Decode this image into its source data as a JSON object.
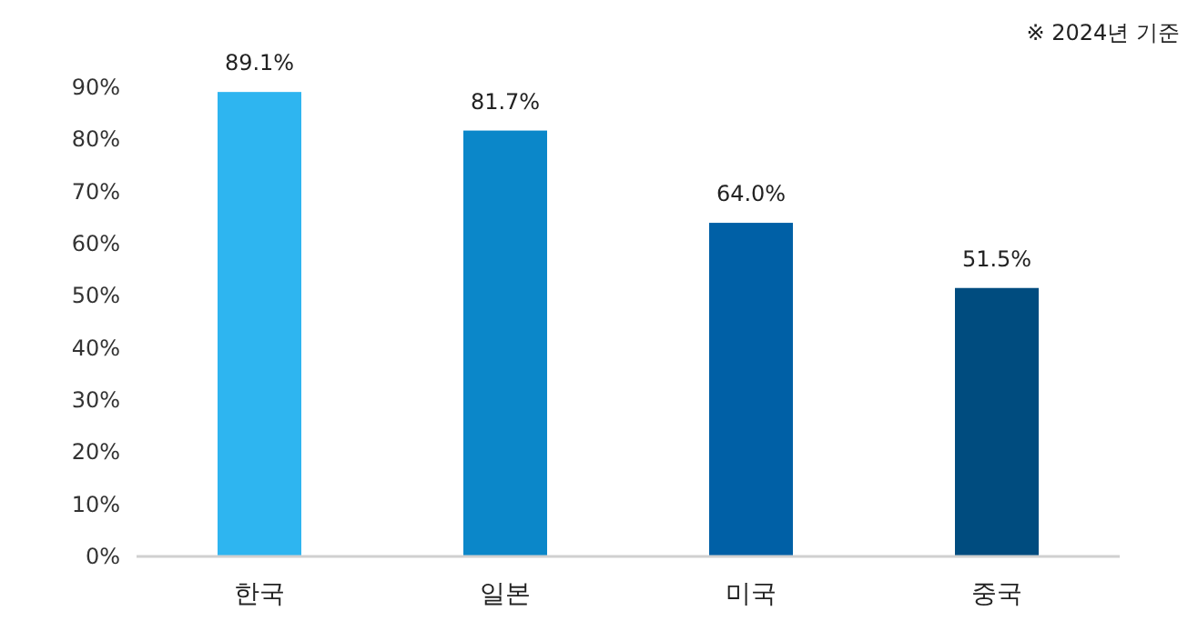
{
  "chart_data": {
    "type": "bar",
    "categories": [
      "한국",
      "일본",
      "미국",
      "중국"
    ],
    "values": [
      89.1,
      81.7,
      64.0,
      51.5
    ],
    "colors": [
      "#2eb5f0",
      "#0b87c9",
      "#0060a6",
      "#004c7f"
    ],
    "value_labels": [
      "89.1%",
      "81.7%",
      "64.0%",
      "51.5%"
    ],
    "ylim": [
      0,
      90
    ],
    "yticks": [
      {
        "value": 0,
        "label": "0%"
      },
      {
        "value": 10,
        "label": "10%"
      },
      {
        "value": 20,
        "label": "20%"
      },
      {
        "value": 30,
        "label": "30%"
      },
      {
        "value": 40,
        "label": "40%"
      },
      {
        "value": 50,
        "label": "50%"
      },
      {
        "value": 60,
        "label": "60%"
      },
      {
        "value": 70,
        "label": "70%"
      },
      {
        "value": 80,
        "label": "80%"
      },
      {
        "value": 90,
        "label": "90%"
      }
    ],
    "annotations": [
      "※ 2024년 기준"
    ]
  }
}
